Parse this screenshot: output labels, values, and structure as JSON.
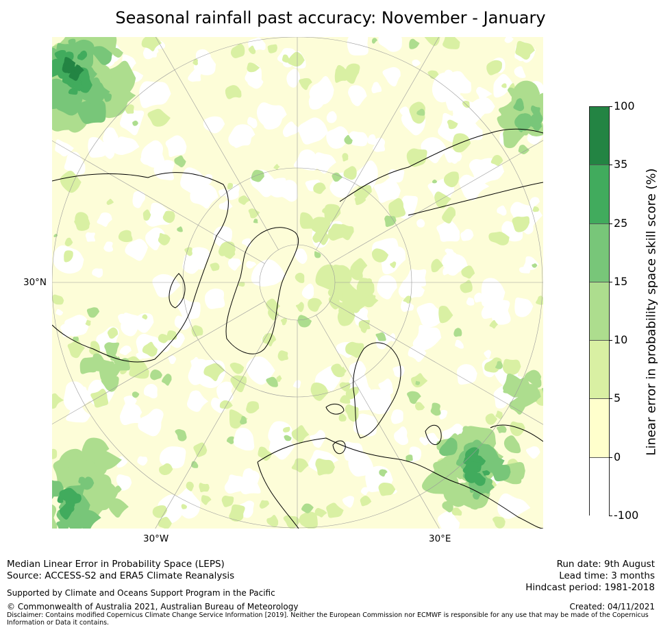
{
  "title": "Seasonal rainfall past accuracy: November - January",
  "map": {
    "labels": {
      "lat_30n": "30°N",
      "lon_30w": "30°W",
      "lon_30e": "30°E"
    },
    "colors": {
      "land_outline": "#000000",
      "graticule": "#9a9a9a"
    }
  },
  "colorbar": {
    "label": "Linear error in probability space skill score (%)",
    "ticks": [
      "100",
      "35",
      "25",
      "15",
      "10",
      "5",
      "0",
      "-100"
    ],
    "bins": [
      {
        "range": "35 to 100",
        "color": "#238443"
      },
      {
        "range": "25 to 35",
        "color": "#41ab5d"
      },
      {
        "range": "15 to 25",
        "color": "#78c679"
      },
      {
        "range": "10 to 15",
        "color": "#addd8e"
      },
      {
        "range": "5 to 10",
        "color": "#d9f0a3"
      },
      {
        "range": "0 to 5",
        "color": "#ffffcc"
      },
      {
        "range": "-100 to 0",
        "color": "#ffffff"
      }
    ]
  },
  "footer": {
    "line1": "Median Linear Error in Probability Space (LEPS)",
    "line2": "Source: ACCESS-S2 and ERA5 Climate Reanalysis",
    "support": "Supported by Climate and Oceans Support Program in the Pacific",
    "copyright": "© Commonwealth of Australia 2021, Australian Bureau of Meteorology",
    "disclaimer1": "Disclaimer: Contains modified Copernicus Climate Change Service Information [2019]. Neither the European Commission nor ECMWF is responsible for any use that may be made of the Copernicus",
    "disclaimer2": "Information or Data it contains.",
    "run_date": "Run date: 9th August",
    "lead_time": "Lead time: 3 months",
    "hindcast": "Hindcast period: 1981-2018",
    "created": "Created: 04/11/2021"
  }
}
